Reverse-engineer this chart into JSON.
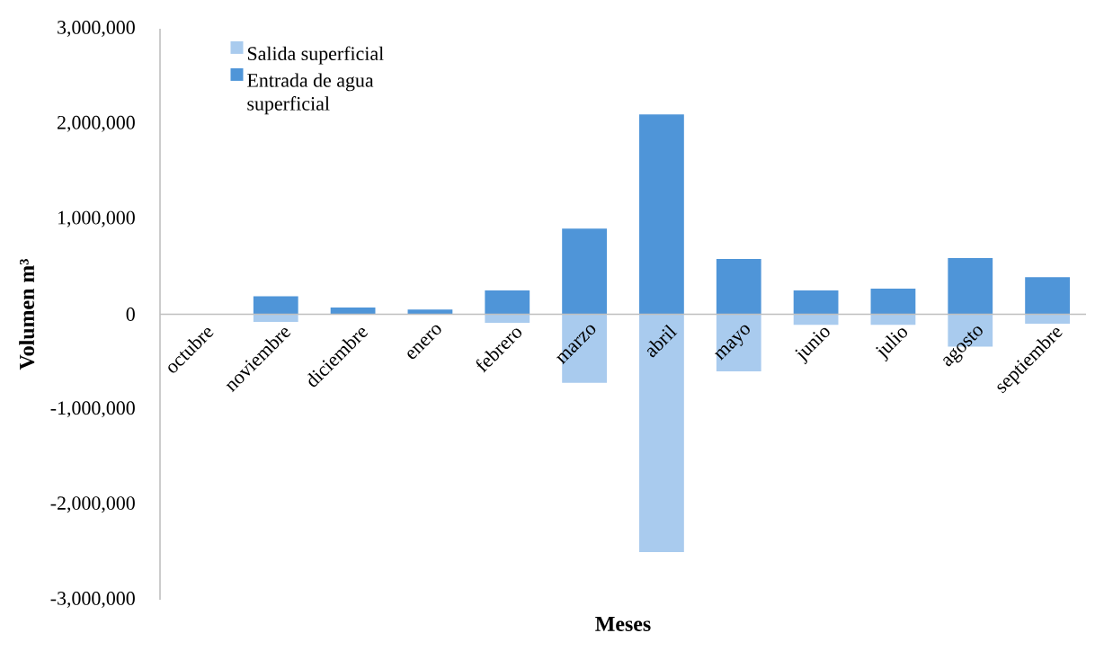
{
  "chart_data": {
    "type": "bar",
    "stacked": true,
    "xlabel": "Meses",
    "ylabel": "Volumen m³",
    "categories": [
      "octubre",
      "noviembre",
      "diciembre",
      "enero",
      "febrero",
      "marzo",
      "abril",
      "mayo",
      "junio",
      "julio",
      "agosto",
      "septiembre"
    ],
    "series": [
      {
        "name": "Salida superficial",
        "color": "#a9cbee",
        "values": [
          0,
          -80000,
          0,
          0,
          -90000,
          -720000,
          -2500000,
          -600000,
          -110000,
          -110000,
          -340000,
          -100000
        ]
      },
      {
        "name": "Entrada de agua superficial",
        "color": "#4f95d8",
        "values": [
          0,
          190000,
          70000,
          50000,
          250000,
          900000,
          2100000,
          580000,
          250000,
          270000,
          590000,
          390000
        ]
      }
    ],
    "ylim": [
      -3000000,
      3000000
    ],
    "yticks": [
      {
        "value": -3000000,
        "label": "-3,000,000"
      },
      {
        "value": -2000000,
        "label": "-2,000,000"
      },
      {
        "value": -1000000,
        "label": "-1,000,000"
      },
      {
        "value": 0,
        "label": "0"
      },
      {
        "value": 1000000,
        "label": "1,000,000"
      },
      {
        "value": 2000000,
        "label": "2,000,000"
      },
      {
        "value": 3000000,
        "label": "3,000,000"
      }
    ],
    "grid": false,
    "legend": "top left"
  }
}
